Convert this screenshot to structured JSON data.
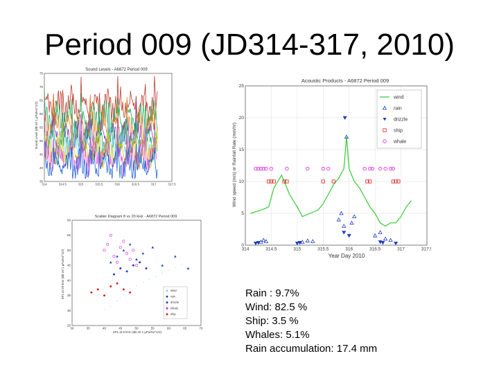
{
  "slide": {
    "title": "Period 009 (JD314-317, 2010)"
  },
  "stats": [
    "Rain : 9.7%",
    "Wind: 82.5 %",
    "Ship: 3.5 %",
    "Whales:  5.1%",
    "Rain accumulation: 17.4 mm"
  ],
  "chart_data": [
    {
      "type": "line",
      "title": "Sound Levels - A6872 Period 009",
      "xlabel": "Year Day 2010",
      "ylabel": "Sound Level (dB rel 1 μPa/Hz^1/2)",
      "xlim": [
        314,
        317.5
      ],
      "ylim": [
        35,
        75
      ],
      "x_ticks": [
        "314",
        "314.5",
        "315",
        "315.5",
        "316",
        "316.5",
        "317",
        "317.5"
      ],
      "y_ticks": [
        "35",
        "40",
        "45",
        "50",
        "55",
        "60",
        "65",
        "70",
        "75"
      ],
      "series_colors": [
        "#c0392b",
        "#27ae60",
        "#e67e22",
        "#8e44ad",
        "#16a085",
        "#7fd6f0",
        "#c9c900",
        "#e84ad0",
        "#1a60d8"
      ],
      "series_levels": [
        63,
        58,
        55,
        52,
        50,
        48,
        46,
        44,
        41
      ]
    },
    {
      "type": "scatter",
      "title": "Acoustic Products - A6872 Period 009",
      "xlabel": "Year Day 2010",
      "ylabel": "Wind speed (m/s) or Rainfall Rate (mm/hr)",
      "xlim": [
        314,
        317.5
      ],
      "ylim": [
        0,
        25
      ],
      "x_ticks": [
        "314",
        "314.5",
        "315",
        "315.5",
        "316",
        "316.5",
        "317",
        "317.5"
      ],
      "y_ticks": [
        "0",
        "5",
        "10",
        "15",
        "20",
        "25"
      ],
      "grid": true,
      "legend_position": "top-right",
      "legend": [
        "wind",
        "rain",
        "drizzle",
        "ship",
        "whale"
      ],
      "series": [
        {
          "name": "wind",
          "color": "#33cc33",
          "x": [
            314.1,
            314.3,
            314.45,
            314.55,
            314.7,
            314.85,
            315.0,
            315.1,
            315.25,
            315.4,
            315.5,
            315.6,
            315.7,
            315.8,
            315.9,
            315.95,
            316.0,
            316.1,
            316.2,
            316.3,
            316.4,
            316.5,
            316.6,
            316.7,
            316.8,
            316.9,
            317.0,
            317.1,
            317.2
          ],
          "y": [
            5,
            5.5,
            6,
            9,
            11,
            8,
            6,
            4.5,
            5,
            5.5,
            6.5,
            8,
            9.5,
            10.5,
            12,
            17,
            12,
            10,
            9,
            7.5,
            6,
            5,
            3.5,
            3,
            3.5,
            3.5,
            4.5,
            6,
            7
          ]
        },
        {
          "name": "rain",
          "color": "#1f3fbf",
          "x": [
            314.3,
            314.35,
            314.4,
            315.1,
            315.2,
            315.3,
            315.8,
            315.85,
            315.9,
            315.95,
            316.05,
            316.1,
            316.5,
            316.6,
            316.7,
            316.8
          ],
          "y": [
            0.5,
            0.8,
            0.6,
            0.5,
            0.7,
            0.6,
            4,
            5,
            3,
            17,
            3.5,
            4.5,
            1.5,
            2,
            1,
            0.8
          ]
        },
        {
          "name": "drizzle",
          "color": "#1f3fbf",
          "x": [
            314.2,
            314.25,
            315.0,
            315.05,
            315.9,
            315.92,
            316.0,
            316.6,
            316.65,
            316.9
          ],
          "y": [
            0.3,
            0.4,
            0.3,
            0.4,
            2,
            20,
            1.5,
            0.5,
            0.4,
            0.3
          ]
        },
        {
          "name": "ship",
          "color": "#dd2222",
          "x": [
            314.45,
            314.5,
            314.55,
            314.75,
            314.8,
            315.5,
            315.7,
            316.35,
            316.4,
            316.85,
            316.9,
            316.95
          ],
          "y": [
            10,
            10,
            10,
            10,
            10,
            10,
            10,
            10,
            10,
            10,
            10,
            10
          ]
        },
        {
          "name": "whale",
          "color": "#dd22dd",
          "x": [
            314.2,
            314.25,
            314.3,
            314.35,
            314.4,
            314.5,
            314.8,
            315.2,
            315.5,
            315.6,
            316.3,
            316.4,
            316.45,
            316.6,
            316.7,
            316.8,
            316.85
          ],
          "y": [
            12,
            12,
            12,
            12,
            12,
            12,
            12,
            12,
            12,
            12,
            12,
            12,
            12,
            12,
            12,
            12,
            12
          ]
        }
      ]
    },
    {
      "type": "scatter",
      "title": "Scatter Diagram 8 vs 20 kHz - A6872 Period 009",
      "xlabel": "SPL at 8 kHz (dB rel 1 μPa/Hz^1/2)",
      "ylabel": "SPL at 20 kHz (dB rel 1 μPa/Hz^1/2)",
      "xlim": [
        30,
        70
      ],
      "ylim": [
        25,
        60
      ],
      "x_ticks": [
        "30",
        "35",
        "40",
        "45",
        "50",
        "55",
        "60",
        "65",
        "70"
      ],
      "y_ticks": [
        "25",
        "30",
        "35",
        "40",
        "45",
        "50",
        "55",
        "60"
      ],
      "legend_position": "bottom-right",
      "legend": [
        "wind",
        "rain",
        "drizzle",
        "whale",
        "ship"
      ],
      "series": [
        {
          "name": "wind",
          "color": "#7fd6f0",
          "x": [
            40,
            42,
            44,
            45,
            46,
            47,
            48,
            50,
            52,
            54,
            56,
            58,
            60,
            62,
            64
          ],
          "y": [
            30,
            31,
            33,
            34,
            35,
            36,
            37,
            38,
            39,
            40,
            41,
            42,
            43,
            44,
            45
          ]
        },
        {
          "name": "rain",
          "color": "#1f3fbf",
          "x": [
            42,
            44,
            46,
            48,
            50,
            52,
            55,
            58,
            62,
            66
          ],
          "y": [
            46,
            48,
            50,
            52,
            47,
            49,
            51,
            45,
            48,
            44
          ]
        },
        {
          "name": "drizzle",
          "color": "#1f3fbf",
          "x": [
            43,
            45,
            47,
            49,
            51,
            53
          ],
          "y": [
            42,
            44,
            43,
            45,
            46,
            44
          ]
        },
        {
          "name": "whale",
          "color": "#dd22dd",
          "x": [
            40,
            41,
            42,
            43,
            44,
            45,
            46,
            47,
            48,
            49,
            50
          ],
          "y": [
            50,
            52,
            55,
            48,
            46,
            51,
            53,
            49,
            47,
            50,
            45
          ]
        },
        {
          "name": "ship",
          "color": "#dd2222",
          "x": [
            36,
            38,
            40,
            42,
            44,
            46,
            48
          ],
          "y": [
            36,
            37,
            35,
            38,
            39,
            37,
            36
          ]
        }
      ]
    }
  ]
}
